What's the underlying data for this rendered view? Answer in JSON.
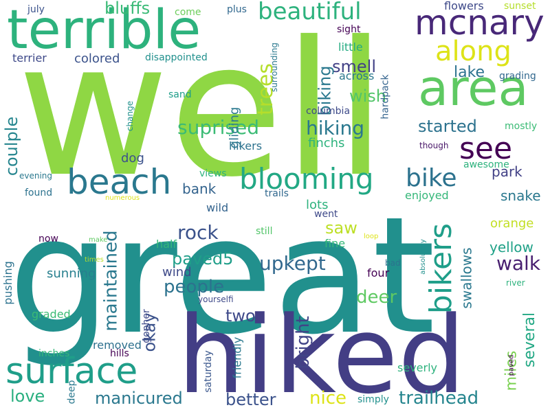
{
  "words": [
    {
      "text": "well",
      "color": "#8fd744"
    },
    {
      "text": "great",
      "color": "#21908d"
    },
    {
      "text": "hiked",
      "color": "#433e85"
    },
    {
      "text": "terrible",
      "color": "#2db27d"
    },
    {
      "text": "area",
      "color": "#5ec962"
    },
    {
      "text": "mcnary",
      "color": "#482878"
    },
    {
      "text": "beach",
      "color": "#2a788e"
    },
    {
      "text": "blooming",
      "color": "#22a884"
    },
    {
      "text": "surface",
      "color": "#1f9e89"
    },
    {
      "text": "beautiful",
      "color": "#2db27d"
    },
    {
      "text": "along",
      "color": "#dde318"
    },
    {
      "text": "see",
      "color": "#440154"
    },
    {
      "text": "bikers",
      "color": "#1f9e89"
    },
    {
      "text": "bike",
      "color": "#2c728e"
    },
    {
      "text": "suprised",
      "color": "#3bbb75"
    },
    {
      "text": "trees",
      "color": "#b5de2b"
    },
    {
      "text": "hiking",
      "color": "#2a788e"
    },
    {
      "text": "started",
      "color": "#2c728e"
    },
    {
      "text": "upkept",
      "color": "#31688e"
    },
    {
      "text": "maintained",
      "color": "#2a788e"
    },
    {
      "text": "people",
      "color": "#2c728e"
    },
    {
      "text": "rock",
      "color": "#3b528b"
    },
    {
      "text": "paved5",
      "color": "#1f9e89"
    },
    {
      "text": "deer",
      "color": "#5ec962"
    },
    {
      "text": "walk",
      "color": "#481f70"
    },
    {
      "text": "several",
      "color": "#22a884"
    },
    {
      "text": "okay",
      "color": "#3b528b"
    },
    {
      "text": "two",
      "color": "#3e4989"
    },
    {
      "text": "bright",
      "color": "#414487"
    },
    {
      "text": "miles",
      "color": "#7ad151"
    },
    {
      "text": "nice",
      "color": "#dde318"
    },
    {
      "text": "trailhead",
      "color": "#25858e"
    },
    {
      "text": "manicured",
      "color": "#2a788e"
    },
    {
      "text": "better",
      "color": "#3b528b"
    },
    {
      "text": "love",
      "color": "#29af7f"
    },
    {
      "text": "coulple",
      "color": "#25858e"
    },
    {
      "text": "bluffs",
      "color": "#3aba76"
    },
    {
      "text": "smell",
      "color": "#424186"
    },
    {
      "text": "biking",
      "color": "#2a788e"
    },
    {
      "text": "lake",
      "color": "#2c728e"
    },
    {
      "text": "wish",
      "color": "#52c569"
    },
    {
      "text": "park",
      "color": "#424186"
    },
    {
      "text": "bank",
      "color": "#33638d"
    },
    {
      "text": "snake",
      "color": "#2a788e"
    },
    {
      "text": "saw",
      "color": "#bddf26"
    },
    {
      "text": "swallows",
      "color": "#2a788e"
    },
    {
      "text": "yellow",
      "color": "#1fa187"
    },
    {
      "text": "orange",
      "color": "#c2df23"
    },
    {
      "text": "sunning",
      "color": "#277f8e"
    },
    {
      "text": "gliding",
      "color": "#2a788e"
    },
    {
      "text": "colored",
      "color": "#3b528b"
    },
    {
      "text": "terrier",
      "color": "#3e4989"
    },
    {
      "text": "finchs",
      "color": "#2db27d"
    },
    {
      "text": "hikers",
      "color": "#2c728e"
    },
    {
      "text": "dog",
      "color": "#3b528b"
    },
    {
      "text": "wind",
      "color": "#3e4a89"
    },
    {
      "text": "half",
      "color": "#35b779"
    },
    {
      "text": "enjoyed",
      "color": "#35b779"
    },
    {
      "text": "lots",
      "color": "#2db27d"
    },
    {
      "text": "fine",
      "color": "#35b779"
    },
    {
      "text": "went",
      "color": "#3e4989"
    },
    {
      "text": "four",
      "color": "#440154"
    },
    {
      "text": "friendly",
      "color": "#2a788e"
    },
    {
      "text": "gopher",
      "color": "#3e4989"
    },
    {
      "text": "saturday",
      "color": "#39568c"
    },
    {
      "text": "graded",
      "color": "#3bbb75"
    },
    {
      "text": "pushing",
      "color": "#2c728e"
    },
    {
      "text": "removed",
      "color": "#2d708e"
    },
    {
      "text": "inches",
      "color": "#35b779"
    },
    {
      "text": "hills",
      "color": "#440154"
    },
    {
      "text": "severly",
      "color": "#2db27d"
    },
    {
      "text": "simply",
      "color": "#21908d"
    },
    {
      "text": "deep",
      "color": "#2a788e"
    },
    {
      "text": "across",
      "color": "#2a788e"
    },
    {
      "text": "little",
      "color": "#25ab82"
    },
    {
      "text": "july",
      "color": "#3b528b"
    },
    {
      "text": "come",
      "color": "#6ccd5a"
    },
    {
      "text": "plus",
      "color": "#31688e"
    },
    {
      "text": "flowers",
      "color": "#3e4989"
    },
    {
      "text": "sunset",
      "color": "#b5de2b"
    },
    {
      "text": "sight",
      "color": "#440154"
    },
    {
      "text": "disappointed",
      "color": "#21908d"
    },
    {
      "text": "sand",
      "color": "#1f9e89"
    },
    {
      "text": "grading",
      "color": "#31688e"
    },
    {
      "text": "columbia",
      "color": "#3e4a89"
    },
    {
      "text": "hardpack",
      "color": "#33638d"
    },
    {
      "text": "surrounding",
      "color": "#2a788e"
    },
    {
      "text": "change",
      "color": "#21918c"
    },
    {
      "text": "mostly",
      "color": "#3bbb75"
    },
    {
      "text": "though",
      "color": "#481668"
    },
    {
      "text": "awesome",
      "color": "#2db27d"
    },
    {
      "text": "views",
      "color": "#2db27d"
    },
    {
      "text": "evening",
      "color": "#2a788e"
    },
    {
      "text": "found",
      "color": "#2c728e"
    },
    {
      "text": "numerous",
      "color": "#dde318"
    },
    {
      "text": "trails",
      "color": "#31688e"
    },
    {
      "text": "wild",
      "color": "#33638d"
    },
    {
      "text": "still",
      "color": "#52c569"
    },
    {
      "text": "now",
      "color": "#440154"
    },
    {
      "text": "make",
      "color": "#5ec962"
    },
    {
      "text": "loop",
      "color": "#dde318"
    },
    {
      "text": "times",
      "color": "#b5de2b"
    },
    {
      "text": "bad",
      "color": "#2c728e"
    },
    {
      "text": "absolutely",
      "color": "#21908d"
    },
    {
      "text": "river",
      "color": "#2db27d"
    },
    {
      "text": "yourselfi",
      "color": "#3e4989"
    },
    {
      "text": "paved",
      "color": "#440154"
    }
  ]
}
